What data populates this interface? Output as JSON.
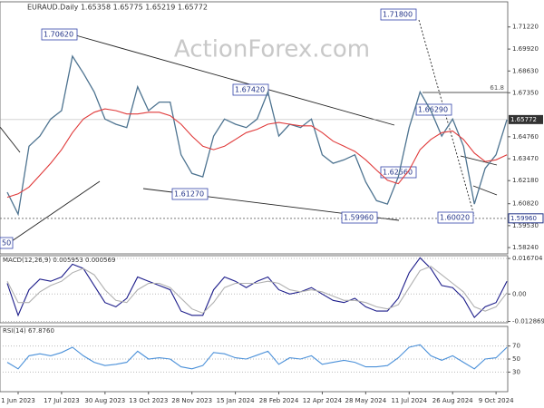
{
  "chart_data": [
    {
      "type": "line",
      "title": "EURAUD.Daily 1.65358 1.65775 1.65219 1.65772",
      "watermark": "ActionForex.com",
      "ylim": [
        1.5787,
        1.727
      ],
      "yticks": [
        {
          "value": 1.7122,
          "label": "1.71220"
        },
        {
          "value": 1.6992,
          "label": "1.69920"
        },
        {
          "value": 1.6863,
          "label": "1.68630"
        },
        {
          "value": 1.6735,
          "label": "1.67350"
        },
        {
          "value": 1.6476,
          "label": "1.64760"
        },
        {
          "value": 1.6347,
          "label": "1.63470"
        },
        {
          "value": 1.6218,
          "label": "1.62180"
        },
        {
          "value": 1.6082,
          "label": "1.60820"
        },
        {
          "value": 1.5953,
          "label": "1.59530"
        },
        {
          "value": 1.5824,
          "label": "1.58240"
        }
      ],
      "last_price": 1.65772,
      "support": {
        "value": 1.5996,
        "label": "1.59960"
      },
      "level_label": "61.8",
      "annotations": [
        "1.70620",
        "1.71800",
        "1.67420",
        "1.66290",
        "1.62560",
        "1.61270",
        "1.59960",
        "1.60020",
        "50"
      ],
      "series": [
        {
          "color": "#4d7390",
          "values": [
            1.615,
            1.602,
            1.642,
            1.648,
            1.658,
            1.663,
            1.695,
            1.685,
            1.674,
            1.658,
            1.655,
            1.653,
            1.677,
            1.663,
            1.668,
            1.668,
            1.637,
            1.626,
            1.624,
            1.648,
            1.658,
            1.655,
            1.653,
            1.658,
            1.674,
            1.648,
            1.655,
            1.653,
            1.658,
            1.637,
            1.632,
            1.634,
            1.637,
            1.621,
            1.61,
            1.608,
            1.624,
            1.653,
            1.674,
            1.663,
            1.648,
            1.658,
            1.642,
            1.608,
            1.629,
            1.637,
            1.65772
          ]
        },
        {
          "color": "#e03a3a",
          "values": [
            1.612,
            1.614,
            1.618,
            1.625,
            1.632,
            1.64,
            1.65,
            1.658,
            1.662,
            1.664,
            1.663,
            1.661,
            1.661,
            1.662,
            1.662,
            1.66,
            1.655,
            1.648,
            1.642,
            1.64,
            1.642,
            1.646,
            1.65,
            1.652,
            1.655,
            1.656,
            1.655,
            1.654,
            1.654,
            1.65,
            1.645,
            1.642,
            1.639,
            1.634,
            1.628,
            1.622,
            1.62,
            1.628,
            1.64,
            1.646,
            1.65,
            1.651,
            1.646,
            1.638,
            1.633,
            1.634,
            1.637
          ]
        }
      ]
    },
    {
      "type": "line",
      "title": "MACD(12,26,9) 0.005953 0.000569",
      "ylim": [
        -0.0135,
        0.018
      ],
      "yticks": [
        0.016704,
        {
          "value": 0,
          "label": "0.00"
        },
        -0.012869
      ],
      "series": [
        {
          "color": "#1c1c8a",
          "values": [
            0.005,
            -0.01,
            0.002,
            0.007,
            0.006,
            0.008,
            0.014,
            0.012,
            0.004,
            -0.004,
            -0.006,
            -0.002,
            0.008,
            0.006,
            0.004,
            0.002,
            -0.008,
            -0.01,
            -0.01,
            0.002,
            0.008,
            0.006,
            0.003,
            0.006,
            0.008,
            0.002,
            0,
            0.001,
            0.003,
            0,
            -0.003,
            -0.004,
            -0.002,
            -0.006,
            -0.008,
            -0.008,
            -0.002,
            0.01,
            0.017,
            0.012,
            0.004,
            0.003,
            -0.002,
            -0.011,
            -0.006,
            -0.004,
            0.005953
          ]
        },
        {
          "color": "#b0b0b0",
          "values": [
            0.006,
            -0.004,
            -0.004,
            0.001,
            0.004,
            0.006,
            0.01,
            0.012,
            0.009,
            0.002,
            -0.003,
            -0.004,
            0.002,
            0.005,
            0.005,
            0.003,
            -0.002,
            -0.007,
            -0.009,
            -0.004,
            0.003,
            0.005,
            0.005,
            0.005,
            0.006,
            0.005,
            0.002,
            0.001,
            0.002,
            0.001,
            -0.001,
            -0.003,
            -0.003,
            -0.004,
            -0.006,
            -0.007,
            -0.005,
            0.003,
            0.011,
            0.013,
            0.009,
            0.005,
            0.001,
            -0.006,
            -0.008,
            -0.006,
            0.000569
          ]
        }
      ]
    },
    {
      "type": "line",
      "title": "RSI(14) 67.8760",
      "ylim": [
        0,
        100
      ],
      "yticks": [
        70,
        50,
        30
      ],
      "x": [
        null,
        "1 Jun 2023",
        null,
        null,
        null,
        "17 Jul 2023",
        null,
        null,
        null,
        "30 Aug 2023",
        null,
        null,
        null,
        "13 Oct 2023",
        null,
        null,
        null,
        "28 Nov 2023",
        null,
        null,
        null,
        "15 Jan 2024",
        null,
        null,
        null,
        "28 Feb 2024",
        null,
        null,
        null,
        "12 Apr 2024",
        null,
        null,
        null,
        "28 May 2024",
        null,
        null,
        null,
        "11 Jul 2024",
        null,
        null,
        null,
        "26 Aug 2024",
        null,
        null,
        null,
        "9 Oct 2024",
        null
      ],
      "series": [
        {
          "color": "#4a90d9",
          "values": [
            45,
            35,
            55,
            58,
            55,
            60,
            68,
            55,
            45,
            40,
            42,
            45,
            62,
            50,
            52,
            50,
            38,
            35,
            40,
            60,
            58,
            52,
            50,
            56,
            62,
            42,
            52,
            50,
            55,
            42,
            45,
            48,
            45,
            38,
            38,
            40,
            52,
            68,
            72,
            55,
            48,
            55,
            45,
            35,
            50,
            52,
            67.876
          ]
        }
      ]
    }
  ]
}
